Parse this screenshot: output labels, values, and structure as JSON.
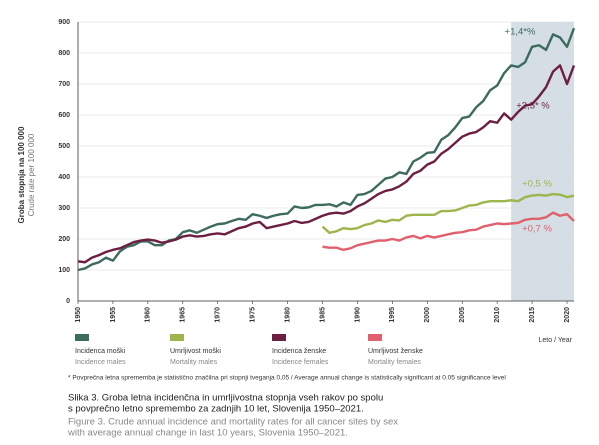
{
  "chart_data": {
    "type": "line",
    "y_label": "Groba stopnja na 100 000",
    "y_label_en": "Crude rate per 100 000",
    "x_label": "Leto / Year",
    "x": [
      1950,
      1951,
      1952,
      1953,
      1954,
      1955,
      1956,
      1957,
      1958,
      1959,
      1960,
      1961,
      1962,
      1963,
      1964,
      1965,
      1966,
      1967,
      1968,
      1969,
      1970,
      1971,
      1972,
      1973,
      1974,
      1975,
      1976,
      1977,
      1978,
      1979,
      1980,
      1981,
      1982,
      1983,
      1984,
      1985,
      1986,
      1987,
      1988,
      1989,
      1990,
      1991,
      1992,
      1993,
      1994,
      1995,
      1996,
      1997,
      1998,
      1999,
      2000,
      2001,
      2002,
      2003,
      2004,
      2005,
      2006,
      2007,
      2008,
      2009,
      2010,
      2011,
      2012,
      2013,
      2014,
      2015,
      2016,
      2017,
      2018,
      2019,
      2020,
      2021
    ],
    "xlim": [
      1950,
      2021
    ],
    "xticks": [
      1950,
      1955,
      1960,
      1965,
      1970,
      1975,
      1980,
      1985,
      1990,
      1995,
      2000,
      2005,
      2010,
      2015,
      2020
    ],
    "ylim": [
      0,
      900
    ],
    "yticks": [
      0,
      100,
      200,
      300,
      400,
      500,
      600,
      700,
      800,
      900
    ],
    "grid": true,
    "highlight": [
      2012,
      2021
    ],
    "highlight_color": "#d5dee5",
    "series": [
      {
        "name": "Incidenca moški",
        "name_en": "Incidence males",
        "color": "#3e6b5f",
        "annotation": "+1,4*%",
        "values": [
          100,
          105,
          118,
          125,
          140,
          130,
          160,
          175,
          180,
          192,
          192,
          180,
          180,
          195,
          200,
          222,
          228,
          220,
          230,
          240,
          248,
          250,
          258,
          265,
          262,
          280,
          275,
          268,
          275,
          280,
          282,
          305,
          300,
          302,
          310,
          310,
          312,
          305,
          318,
          310,
          342,
          345,
          355,
          375,
          395,
          400,
          415,
          410,
          450,
          462,
          478,
          480,
          520,
          535,
          560,
          590,
          595,
          625,
          645,
          680,
          695,
          735,
          760,
          755,
          770,
          820,
          825,
          810,
          860,
          850,
          820,
          880
        ]
      },
      {
        "name": "Umrljivost moški",
        "name_en": "Mortality males",
        "color": "#9db54c",
        "annotation": "+0,5 %",
        "values": [
          null,
          null,
          null,
          null,
          null,
          null,
          null,
          null,
          null,
          null,
          null,
          null,
          null,
          null,
          null,
          null,
          null,
          null,
          null,
          null,
          null,
          null,
          null,
          null,
          null,
          null,
          null,
          null,
          null,
          null,
          null,
          null,
          null,
          null,
          null,
          240,
          220,
          225,
          235,
          232,
          235,
          245,
          250,
          260,
          255,
          262,
          260,
          275,
          278,
          278,
          278,
          278,
          290,
          290,
          292,
          300,
          308,
          310,
          318,
          322,
          322,
          322,
          325,
          322,
          335,
          340,
          342,
          340,
          345,
          343,
          335,
          340
        ]
      },
      {
        "name": "Incidenca ženske",
        "name_en": "Incidence females",
        "color": "#6c1f40",
        "annotation": "+2,5* %",
        "values": [
          128,
          125,
          140,
          148,
          158,
          165,
          170,
          180,
          190,
          195,
          198,
          195,
          188,
          192,
          198,
          208,
          212,
          208,
          210,
          215,
          218,
          215,
          225,
          235,
          240,
          250,
          255,
          235,
          240,
          245,
          250,
          258,
          252,
          255,
          265,
          275,
          282,
          285,
          282,
          290,
          305,
          315,
          330,
          345,
          355,
          360,
          370,
          385,
          410,
          420,
          440,
          450,
          475,
          490,
          510,
          530,
          540,
          545,
          560,
          580,
          575,
          605,
          585,
          610,
          630,
          635,
          660,
          690,
          740,
          760,
          700,
          760
        ]
      },
      {
        "name": "Umrljivost ženske",
        "name_en": "Mortality females",
        "color": "#e0616d",
        "annotation": "+0,7 %",
        "values": [
          null,
          null,
          null,
          null,
          null,
          null,
          null,
          null,
          null,
          null,
          null,
          null,
          null,
          null,
          null,
          null,
          null,
          null,
          null,
          null,
          null,
          null,
          null,
          null,
          null,
          null,
          null,
          null,
          null,
          null,
          null,
          null,
          null,
          null,
          null,
          175,
          172,
          172,
          165,
          170,
          180,
          185,
          190,
          195,
          195,
          200,
          195,
          205,
          210,
          202,
          210,
          205,
          210,
          215,
          220,
          222,
          228,
          230,
          240,
          245,
          250,
          248,
          250,
          252,
          262,
          265,
          265,
          270,
          285,
          275,
          280,
          258
        ]
      }
    ],
    "footnote": "* Povprečna letna sprememba je statistično značilna pri stopnji tveganja 0,05 / Average annual change is statistically significant at 0.05 significance level",
    "caption": [
      "Slika 3. Groba letna incidenčna in umrljivostna stopnja vseh rakov po spolu",
      "s povprečno letno spremembo za zadnjih 10 let, Slovenija 1950–2021."
    ],
    "caption_en": [
      "Figure 3. Crude annual incidence and mortality rates for all cancer sites by sex",
      "with average annual change in last 10 years, Slovenia 1950–2021."
    ]
  }
}
